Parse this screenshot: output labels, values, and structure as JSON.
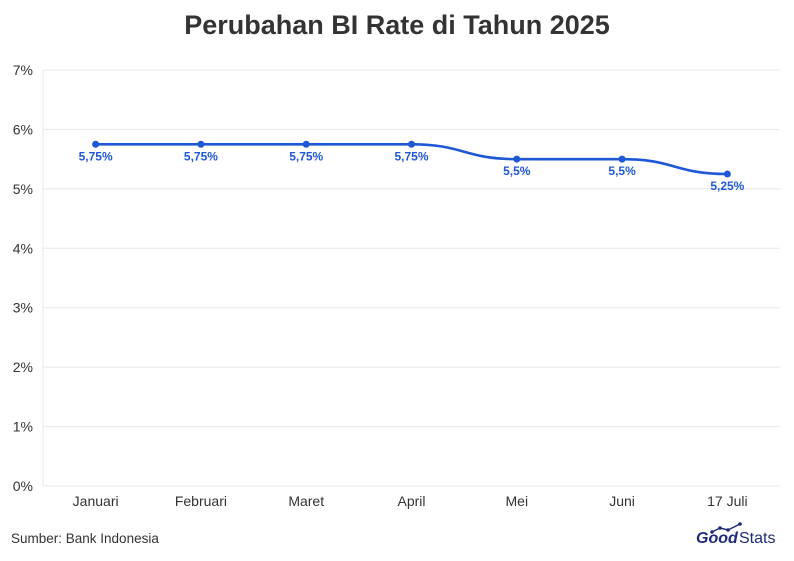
{
  "title": "Perubahan BI Rate di Tahun 2025",
  "source": "Sumber: Bank Indonesia",
  "logo": {
    "part1": "Good",
    "part2": "Stats",
    "icon": "rising-chart-icon"
  },
  "colors": {
    "line": "#1f58d6",
    "label": "#1f58d6",
    "grid": "#e8e8e8",
    "axis_text": "#333333"
  },
  "chart_data": {
    "type": "line",
    "title": "Perubahan BI Rate di Tahun 2025",
    "xlabel": "",
    "ylabel": "",
    "categories": [
      "Januari",
      "Februari",
      "Maret",
      "April",
      "Mei",
      "Juni",
      "17 Juli"
    ],
    "series": [
      {
        "values": [
          5.75,
          5.75,
          5.75,
          5.75,
          5.5,
          5.5,
          5.25
        ]
      }
    ],
    "data_labels": [
      "5,75%",
      "5,75%",
      "5,75%",
      "5,75%",
      "5,5%",
      "5,5%",
      "5,25%"
    ],
    "y_ticks": [
      0,
      1,
      2,
      3,
      4,
      5,
      6,
      7
    ],
    "y_tick_labels": [
      "0%",
      "1%",
      "2%",
      "3%",
      "4%",
      "5%",
      "6%",
      "7%"
    ],
    "ylim": [
      0,
      7
    ],
    "grid": true,
    "legend": "none"
  }
}
